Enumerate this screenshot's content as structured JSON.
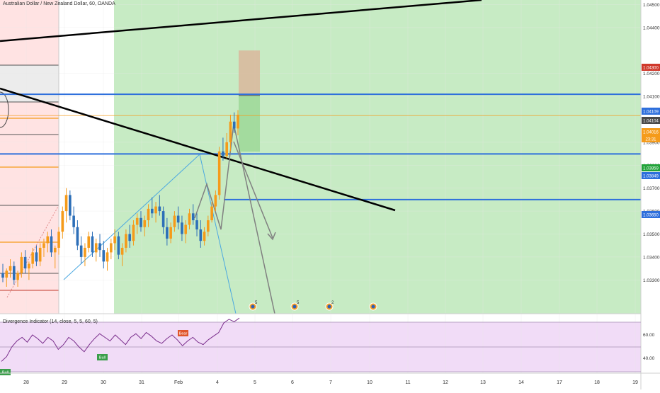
{
  "header": {
    "title": "Australian Dollar / New Zealand Dollar, 60, OANDA"
  },
  "oscillator": {
    "title": "Divergence Indicator (14, close, 5, 5, 60, 5)",
    "ticks": [
      "60.00",
      "40.00"
    ]
  },
  "colors": {
    "bull": "#f59b1a",
    "bear": "#2d6fb8",
    "zone_green": "#c7ebc4",
    "zone_red": "#ffe3e3",
    "hline_blue": "#2e6fdc",
    "trend_black": "#000000",
    "osc_bg": "#f1dcf7",
    "osc_line": "#7a2e8c"
  },
  "chart_data": {
    "type": "candlestick",
    "title": "Australian Dollar / New Zealand Dollar, 60, OANDA",
    "x_ticks": [
      "28",
      "29",
      "30",
      "31",
      "Feb",
      "4",
      "5",
      "6",
      "7",
      "10",
      "11",
      "12",
      "13",
      "14",
      "17",
      "18",
      "19"
    ],
    "y_ticks": [
      "1.04500",
      "1.04400",
      "1.04200",
      "1.04100",
      "1.03900",
      "1.03800",
      "1.03700",
      "1.03600",
      "1.03500",
      "1.03400",
      "1.03300"
    ],
    "ylim": [
      1.0325,
      1.0455
    ],
    "price_labels": [
      {
        "value": "1.04300",
        "color": "#d0392c"
      },
      {
        "value": "1.04109",
        "color": "#2e6fdc"
      },
      {
        "value": "1.04104",
        "color": "#4a4a4a"
      },
      {
        "value": "1.04016",
        "color": "#f59b1a"
      },
      {
        "value": "23:31",
        "color": "#f59b1a"
      },
      {
        "value": "1.03859",
        "color": "#22a33a"
      },
      {
        "value": "1.03849",
        "color": "#2e6fdc"
      },
      {
        "value": "1.03650",
        "color": "#2e6fdc"
      }
    ],
    "horizontal_levels": [
      1.04109,
      1.03849,
      1.0365
    ],
    "current_price": 1.04016,
    "position": {
      "entry": 1.04104,
      "target": 1.03859,
      "stop": 1.043
    },
    "event_markers": [
      "5",
      "5",
      "2",
      ""
    ],
    "osc_badges": [
      "Bear",
      "Bull",
      "Bull"
    ],
    "candles": [
      [
        1.0333,
        1.0337,
        1.0329,
        1.0331
      ],
      [
        1.0331,
        1.0335,
        1.0327,
        1.0334
      ],
      [
        1.0334,
        1.0339,
        1.0331,
        1.0336
      ],
      [
        1.0336,
        1.0338,
        1.0328,
        1.033
      ],
      [
        1.033,
        1.0334,
        1.0327,
        1.0333
      ],
      [
        1.0333,
        1.0342,
        1.0331,
        1.034
      ],
      [
        1.034,
        1.0343,
        1.0333,
        1.0335
      ],
      [
        1.0335,
        1.0338,
        1.033,
        1.0337
      ],
      [
        1.0337,
        1.0344,
        1.0335,
        1.0342
      ],
      [
        1.0342,
        1.0345,
        1.0336,
        1.0338
      ],
      [
        1.0338,
        1.0346,
        1.0336,
        1.0344
      ],
      [
        1.0344,
        1.0348,
        1.034,
        1.0346
      ],
      [
        1.0346,
        1.0351,
        1.0342,
        1.0349
      ],
      [
        1.0349,
        1.0352,
        1.034,
        1.0342
      ],
      [
        1.0342,
        1.0345,
        1.0335,
        1.0344
      ],
      [
        1.0344,
        1.0353,
        1.0341,
        1.0351
      ],
      [
        1.0351,
        1.0362,
        1.0348,
        1.036
      ],
      [
        1.036,
        1.037,
        1.0355,
        1.0367
      ],
      [
        1.0367,
        1.0369,
        1.0356,
        1.0358
      ],
      [
        1.0358,
        1.0362,
        1.035,
        1.0353
      ],
      [
        1.0353,
        1.0356,
        1.0343,
        1.0345
      ],
      [
        1.0345,
        1.0349,
        1.0337,
        1.034
      ],
      [
        1.034,
        1.0346,
        1.0336,
        1.0344
      ],
      [
        1.0344,
        1.0351,
        1.0342,
        1.0349
      ],
      [
        1.0349,
        1.0351,
        1.034,
        1.0342
      ],
      [
        1.0342,
        1.0348,
        1.0338,
        1.0346
      ],
      [
        1.0346,
        1.035,
        1.034,
        1.0343
      ],
      [
        1.0343,
        1.0347,
        1.0335,
        1.0338
      ],
      [
        1.0338,
        1.0344,
        1.0334,
        1.0342
      ],
      [
        1.0342,
        1.0348,
        1.0339,
        1.0346
      ],
      [
        1.0346,
        1.0352,
        1.0343,
        1.0349
      ],
      [
        1.0349,
        1.0351,
        1.0339,
        1.0341
      ],
      [
        1.0341,
        1.0346,
        1.0336,
        1.0344
      ],
      [
        1.0344,
        1.0352,
        1.0342,
        1.035
      ],
      [
        1.035,
        1.0354,
        1.0344,
        1.0347
      ],
      [
        1.0347,
        1.0356,
        1.0345,
        1.0354
      ],
      [
        1.0354,
        1.0359,
        1.035,
        1.0357
      ],
      [
        1.0357,
        1.036,
        1.0351,
        1.0353
      ],
      [
        1.0353,
        1.0358,
        1.0349,
        1.0356
      ],
      [
        1.0356,
        1.0363,
        1.0353,
        1.0361
      ],
      [
        1.0361,
        1.0366,
        1.0357,
        1.0359
      ],
      [
        1.0359,
        1.0364,
        1.0355,
        1.0362
      ],
      [
        1.0362,
        1.0367,
        1.0358,
        1.036
      ],
      [
        1.036,
        1.0362,
        1.035,
        1.0353
      ],
      [
        1.0353,
        1.0357,
        1.0345,
        1.0348
      ],
      [
        1.0348,
        1.0355,
        1.0346,
        1.0353
      ],
      [
        1.0353,
        1.036,
        1.0351,
        1.0358
      ],
      [
        1.0358,
        1.0362,
        1.0352,
        1.0355
      ],
      [
        1.0355,
        1.0358,
        1.0347,
        1.035
      ],
      [
        1.035,
        1.0356,
        1.0346,
        1.0354
      ],
      [
        1.0354,
        1.0361,
        1.0352,
        1.0359
      ],
      [
        1.0359,
        1.0363,
        1.0354,
        1.0356
      ],
      [
        1.0356,
        1.0359,
        1.0349,
        1.0352
      ],
      [
        1.0352,
        1.0356,
        1.0344,
        1.0347
      ],
      [
        1.0347,
        1.0353,
        1.0345,
        1.0351
      ],
      [
        1.0351,
        1.0358,
        1.0349,
        1.0356
      ],
      [
        1.0356,
        1.0364,
        1.0355,
        1.0362
      ],
      [
        1.0362,
        1.0369,
        1.036,
        1.0367
      ],
      [
        1.0367,
        1.0388,
        1.0365,
        1.0386
      ],
      [
        1.0386,
        1.0392,
        1.0382,
        1.0384
      ],
      [
        1.0384,
        1.0394,
        1.0383,
        1.039
      ],
      [
        1.039,
        1.0402,
        1.0386,
        1.0399
      ],
      [
        1.0399,
        1.0403,
        1.0394,
        1.0396
      ],
      [
        1.0396,
        1.0404,
        1.0393,
        1.0402
      ]
    ],
    "osc_values": [
      38,
      42,
      50,
      55,
      58,
      54,
      60,
      57,
      53,
      58,
      55,
      48,
      52,
      58,
      55,
      50,
      46,
      52,
      57,
      61,
      58,
      55,
      60,
      56,
      52,
      58,
      61,
      57,
      62,
      59,
      55,
      53,
      57,
      60,
      56,
      51,
      55,
      58,
      54,
      52,
      56,
      59,
      62,
      70,
      73,
      71,
      74
    ]
  }
}
